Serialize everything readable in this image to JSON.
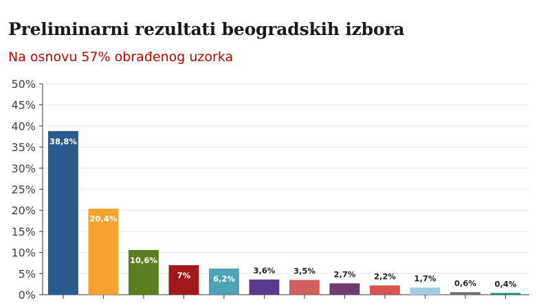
{
  "header": {
    "title": "Preliminarni rezultati beogradskih izbora",
    "subtitle": "Na osnovu 57% obrađenog uzorka"
  },
  "chart_data": {
    "type": "bar",
    "title": "Preliminarni rezultati beogradskih izbora",
    "subtitle": "Na osnovu 57% obrađenog uzorka",
    "xlabel": "",
    "ylabel": "",
    "ylim": [
      0,
      50
    ],
    "yticks": [
      "0%",
      "5%",
      "10%",
      "15%",
      "20%",
      "25%",
      "30%",
      "35%",
      "40%",
      "45%",
      "50%"
    ],
    "grid": true,
    "legend": "none",
    "values": [
      38.8,
      20.4,
      10.6,
      7,
      6.2,
      3.6,
      3.5,
      2.7,
      2.2,
      1.7,
      0.6,
      0.4
    ],
    "labels": [
      "38,8%",
      "20,4%",
      "10,6%",
      "7%",
      "6,2%",
      "3,6%",
      "3,5%",
      "2,7%",
      "2,2%",
      "1,7%",
      "0,6%",
      "0,4%"
    ],
    "colors": [
      "#2a5b8c",
      "#f5a32f",
      "#5b7f1f",
      "#a01a1d",
      "#4ea3b8",
      "#5a3a8c",
      "#d06060",
      "#6e3b6e",
      "#d9534f",
      "#9ecfde",
      "#6e6e6e",
      "#148a6e"
    ],
    "label_inside": [
      true,
      true,
      true,
      true,
      true,
      false,
      false,
      false,
      false,
      false,
      false,
      false
    ],
    "label_color": [
      "#ffffff",
      "#ffffff",
      "#ffffff",
      "#ffffff",
      "#ffffff",
      "#222222",
      "#222222",
      "#222222",
      "#222222",
      "#222222",
      "#222222",
      "#222222"
    ],
    "accent_color": "#b80000",
    "axis_color": "#333333",
    "grid_color": "#e6e6e6"
  }
}
